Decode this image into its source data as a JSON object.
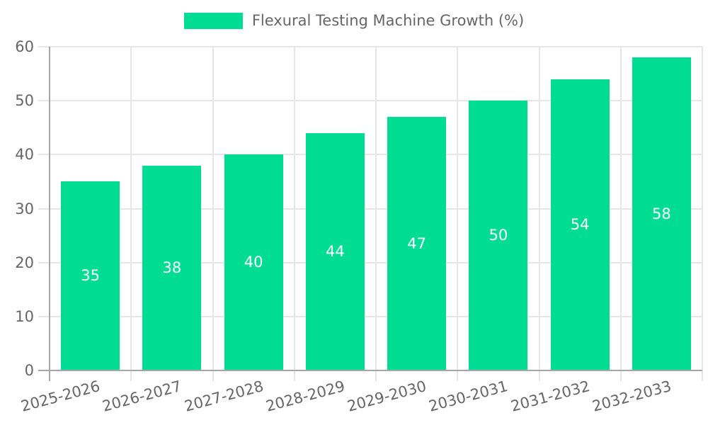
{
  "page": {
    "background": "#ffffff"
  },
  "legend": {
    "position": "top-center"
  },
  "chart_data": {
    "type": "bar",
    "title": "Flexural Testing Machine Growth (%)",
    "categories": [
      "2025-2026",
      "2026-2027",
      "2027-2028",
      "2028-2029",
      "2029-2030",
      "2030-2031",
      "2031-2032",
      "2032-2033"
    ],
    "values": [
      35,
      38,
      40,
      44,
      47,
      50,
      54,
      58
    ],
    "xlabel": "",
    "ylabel": "",
    "ylim": [
      0,
      60
    ],
    "y_ticks": [
      0,
      10,
      20,
      30,
      40,
      50,
      60
    ],
    "grid": true,
    "legend_position": "top-center",
    "x_tick_rotation_deg": -15,
    "bar_color": "#00DC91",
    "value_label_color": "#ffffff",
    "tick_label_color": "#666666",
    "grid_color": "#e6e6e6",
    "axis_color": "#a6a6a6"
  }
}
